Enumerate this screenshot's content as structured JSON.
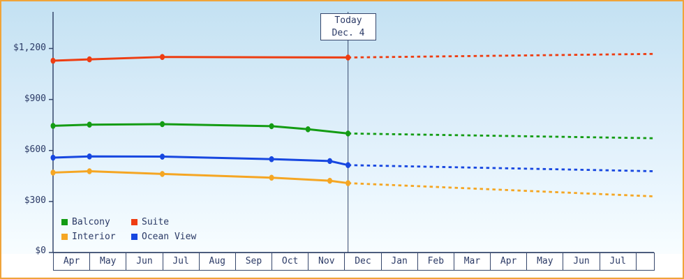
{
  "chart_data": {
    "type": "line",
    "grid": false,
    "legend_position": "bottom-left",
    "ylim": [
      0,
      1200
    ],
    "x_extent_months": 16.5,
    "x_months": [
      "Apr",
      "May",
      "Jun",
      "Jul",
      "Aug",
      "Sep",
      "Oct",
      "Nov",
      "Dec",
      "Jan",
      "Feb",
      "Mar",
      "Apr",
      "May",
      "Jun",
      "Jul"
    ],
    "y_tick_labels": [
      "$1,200",
      "$900",
      "$600",
      "$300",
      "$0"
    ],
    "y_ticks": [
      1200,
      900,
      600,
      300,
      0
    ],
    "today": {
      "label_line1": "Today",
      "label_line2": "Dec. 4",
      "month_index": 8.1
    },
    "series": [
      {
        "name": "Balcony",
        "color": "#149c14",
        "actual": {
          "x": [
            0,
            1,
            3,
            6,
            7,
            8.1
          ],
          "values": [
            745,
            752,
            755,
            743,
            725,
            700
          ]
        },
        "forecast": {
          "x": [
            8.1,
            16.5
          ],
          "values": [
            700,
            672
          ]
        }
      },
      {
        "name": "Suite",
        "color": "#ee3d12",
        "actual": {
          "x": [
            0,
            1,
            3,
            8.1
          ],
          "values": [
            1128,
            1136,
            1150,
            1147
          ]
        },
        "forecast": {
          "x": [
            8.1,
            16.5
          ],
          "values": [
            1147,
            1168
          ]
        }
      },
      {
        "name": "Interior",
        "color": "#f5a623",
        "actual": {
          "x": [
            0,
            1,
            3,
            6,
            7.6,
            8.1
          ],
          "values": [
            470,
            478,
            462,
            440,
            422,
            408
          ]
        },
        "forecast": {
          "x": [
            8.1,
            16.5
          ],
          "values": [
            408,
            330
          ]
        }
      },
      {
        "name": "Ocean View",
        "color": "#1747e0",
        "actual": {
          "x": [
            0,
            1,
            3,
            6,
            7.6,
            8.1
          ],
          "values": [
            558,
            565,
            564,
            549,
            538,
            514
          ]
        },
        "forecast": {
          "x": [
            8.1,
            16.5
          ],
          "values": [
            514,
            478
          ]
        }
      }
    ]
  }
}
